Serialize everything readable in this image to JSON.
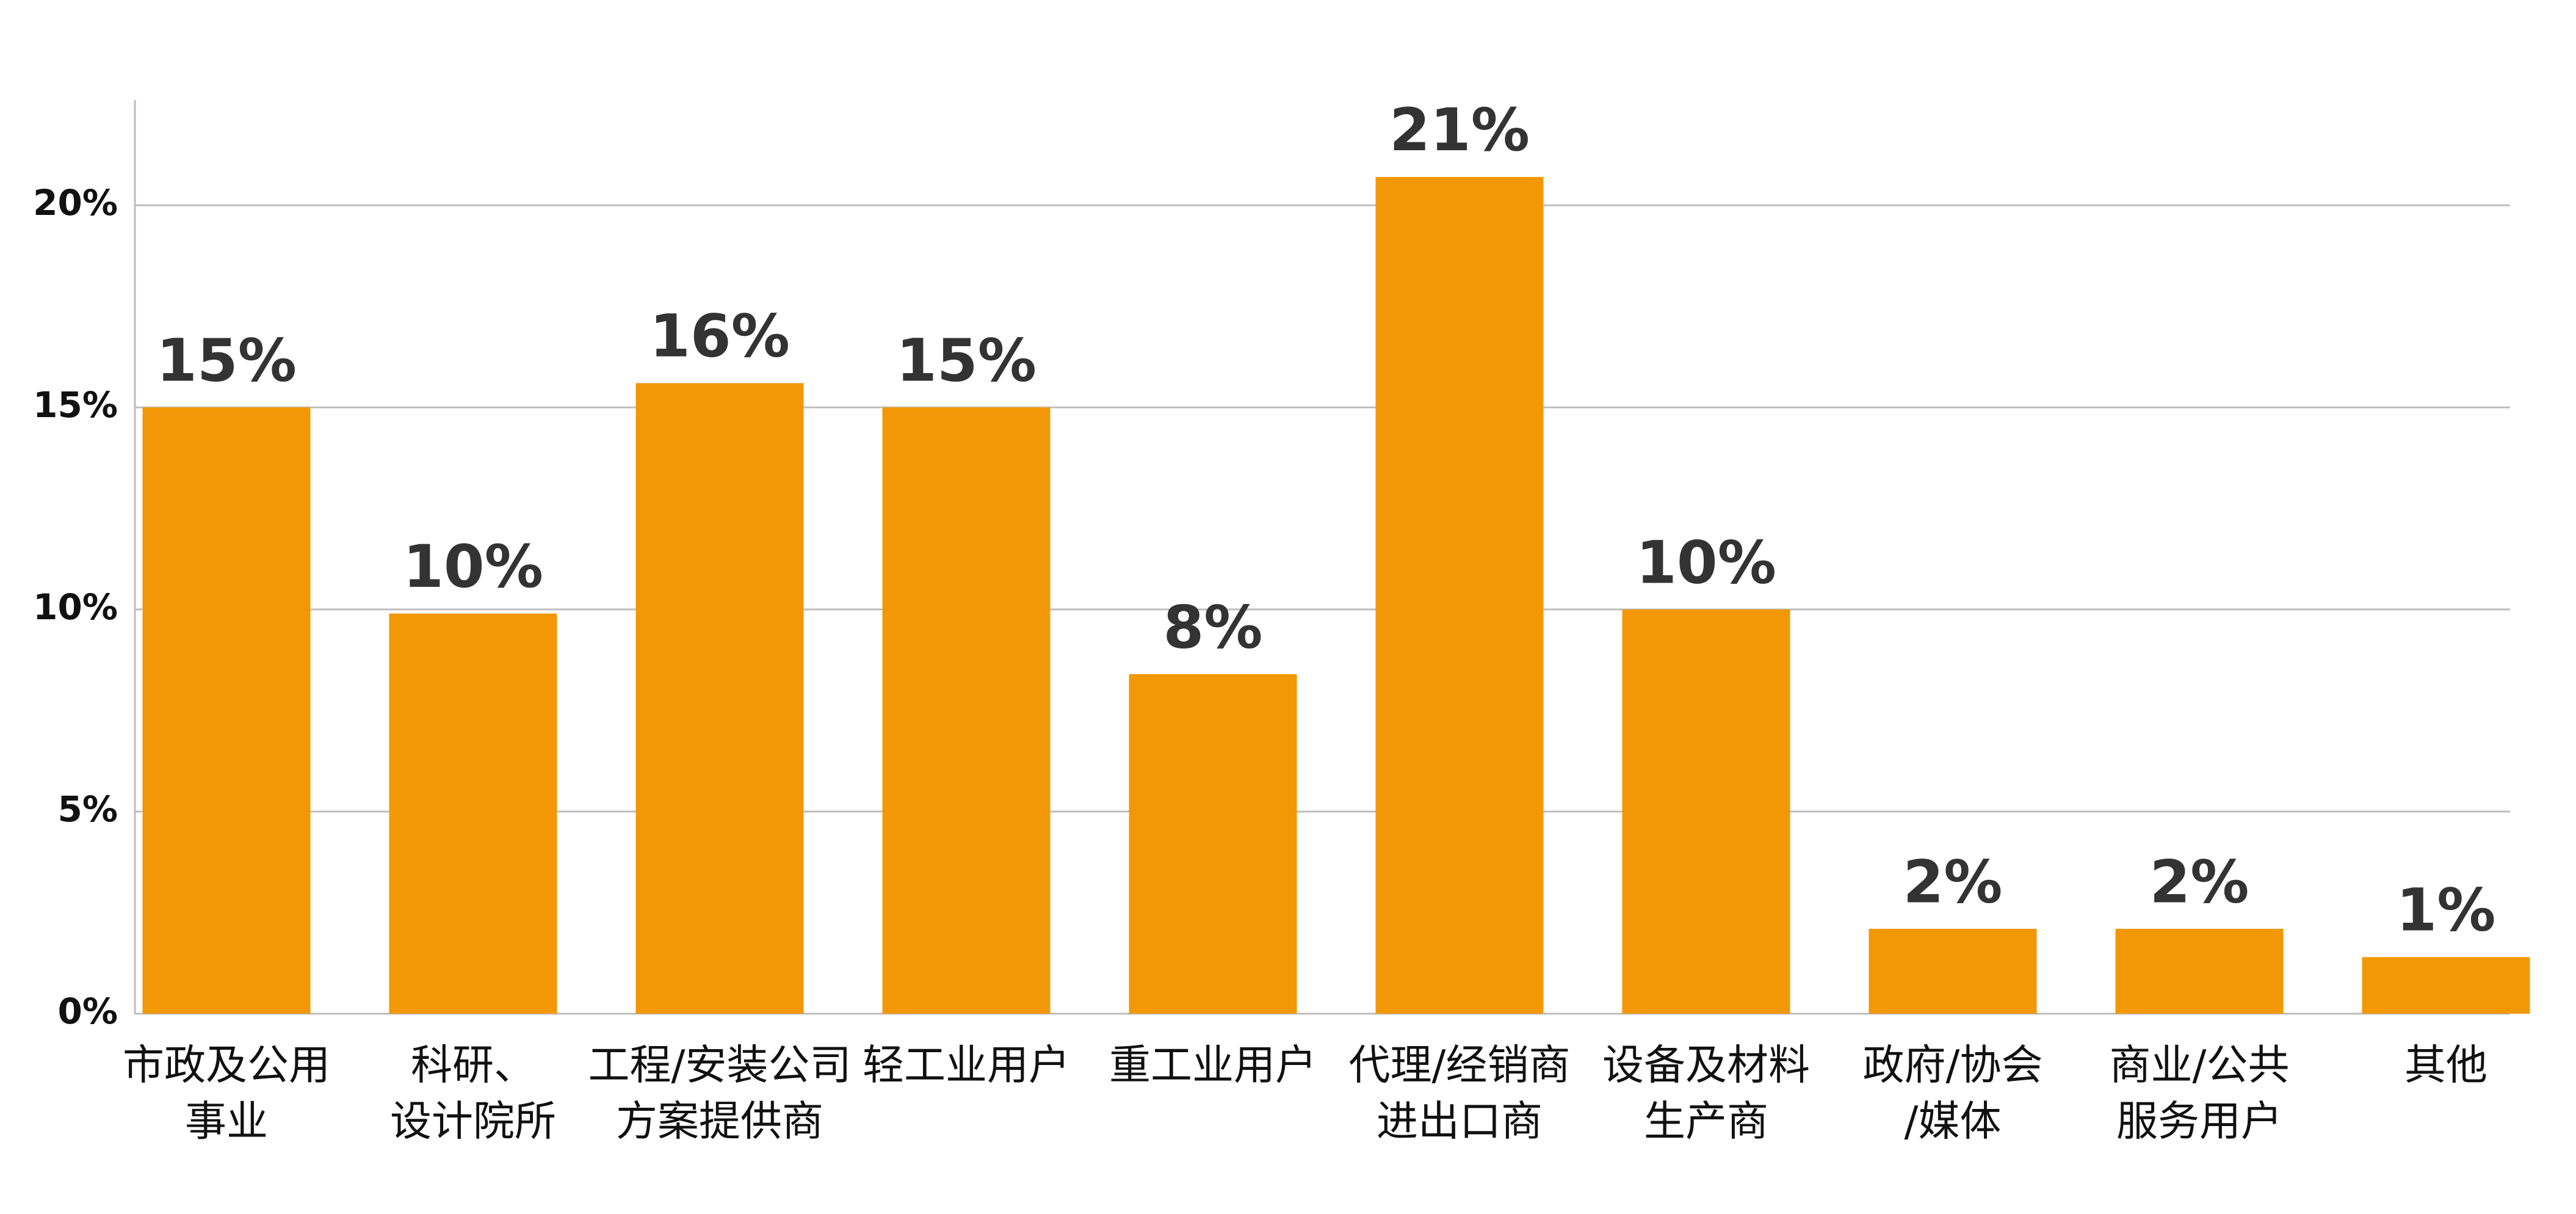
{
  "chart_data": {
    "type": "bar",
    "categories": [
      [
        "市政及公用",
        "事业"
      ],
      [
        "科研、",
        "设计院所"
      ],
      [
        "工程/安装公司",
        "方案提供商"
      ],
      [
        "轻工业用户"
      ],
      [
        "重工业用户"
      ],
      [
        "代理/经销商",
        "进出口商"
      ],
      [
        "设备及材料",
        "生产商"
      ],
      [
        "政府/协会",
        "/媒体"
      ],
      [
        "商业/公共",
        "服务用户"
      ],
      [
        "其他"
      ]
    ],
    "values": [
      15.0,
      9.9,
      15.6,
      15.0,
      8.4,
      20.7,
      10.0,
      2.1,
      2.1,
      1.4
    ],
    "value_labels": [
      "15%",
      "10%",
      "16%",
      "15%",
      "8%",
      "21%",
      "10%",
      "2%",
      "2%",
      "1%"
    ],
    "color": "#f29806",
    "ylim": [
      0,
      22.6
    ],
    "yticks": [
      {
        "value": 0,
        "label": "0%"
      },
      {
        "value": 5,
        "label": "5%"
      },
      {
        "value": 10,
        "label": "10%"
      },
      {
        "value": 15,
        "label": "15%"
      },
      {
        "value": 20,
        "label": "20%"
      }
    ],
    "grid": true
  }
}
